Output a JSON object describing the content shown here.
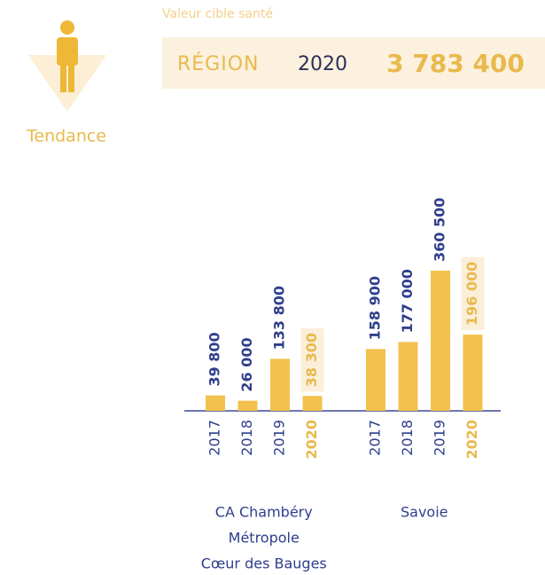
{
  "header": {
    "subtitle": "Valeur cible santé",
    "region_label": "RÉGION",
    "region_year": "2020",
    "region_value": "3 783 400",
    "trend_label": "Tendance"
  },
  "chart_data": {
    "type": "bar",
    "bar_color": "#f2c14e",
    "label_color": "#2f3e8c",
    "highlight_color": "#e9b94d",
    "groups": [
      {
        "label_lines": [
          "CA Chambéry",
          "Métropole",
          "Cœur des Bauges"
        ],
        "categories": [
          "2017",
          "2018",
          "2019",
          "2020"
        ],
        "values": [
          39800,
          26000,
          133800,
          38300
        ],
        "value_labels": [
          "39 800",
          "26 000",
          "133 800",
          "38 300"
        ],
        "highlight": [
          false,
          false,
          false,
          true
        ]
      },
      {
        "label_lines": [
          "Savoie"
        ],
        "categories": [
          "2017",
          "2018",
          "2019",
          "2020"
        ],
        "values": [
          158900,
          177000,
          360500,
          196000
        ],
        "value_labels": [
          "158 900",
          "177 000",
          "360 500",
          "196 000"
        ],
        "highlight": [
          false,
          false,
          false,
          true
        ]
      }
    ]
  }
}
